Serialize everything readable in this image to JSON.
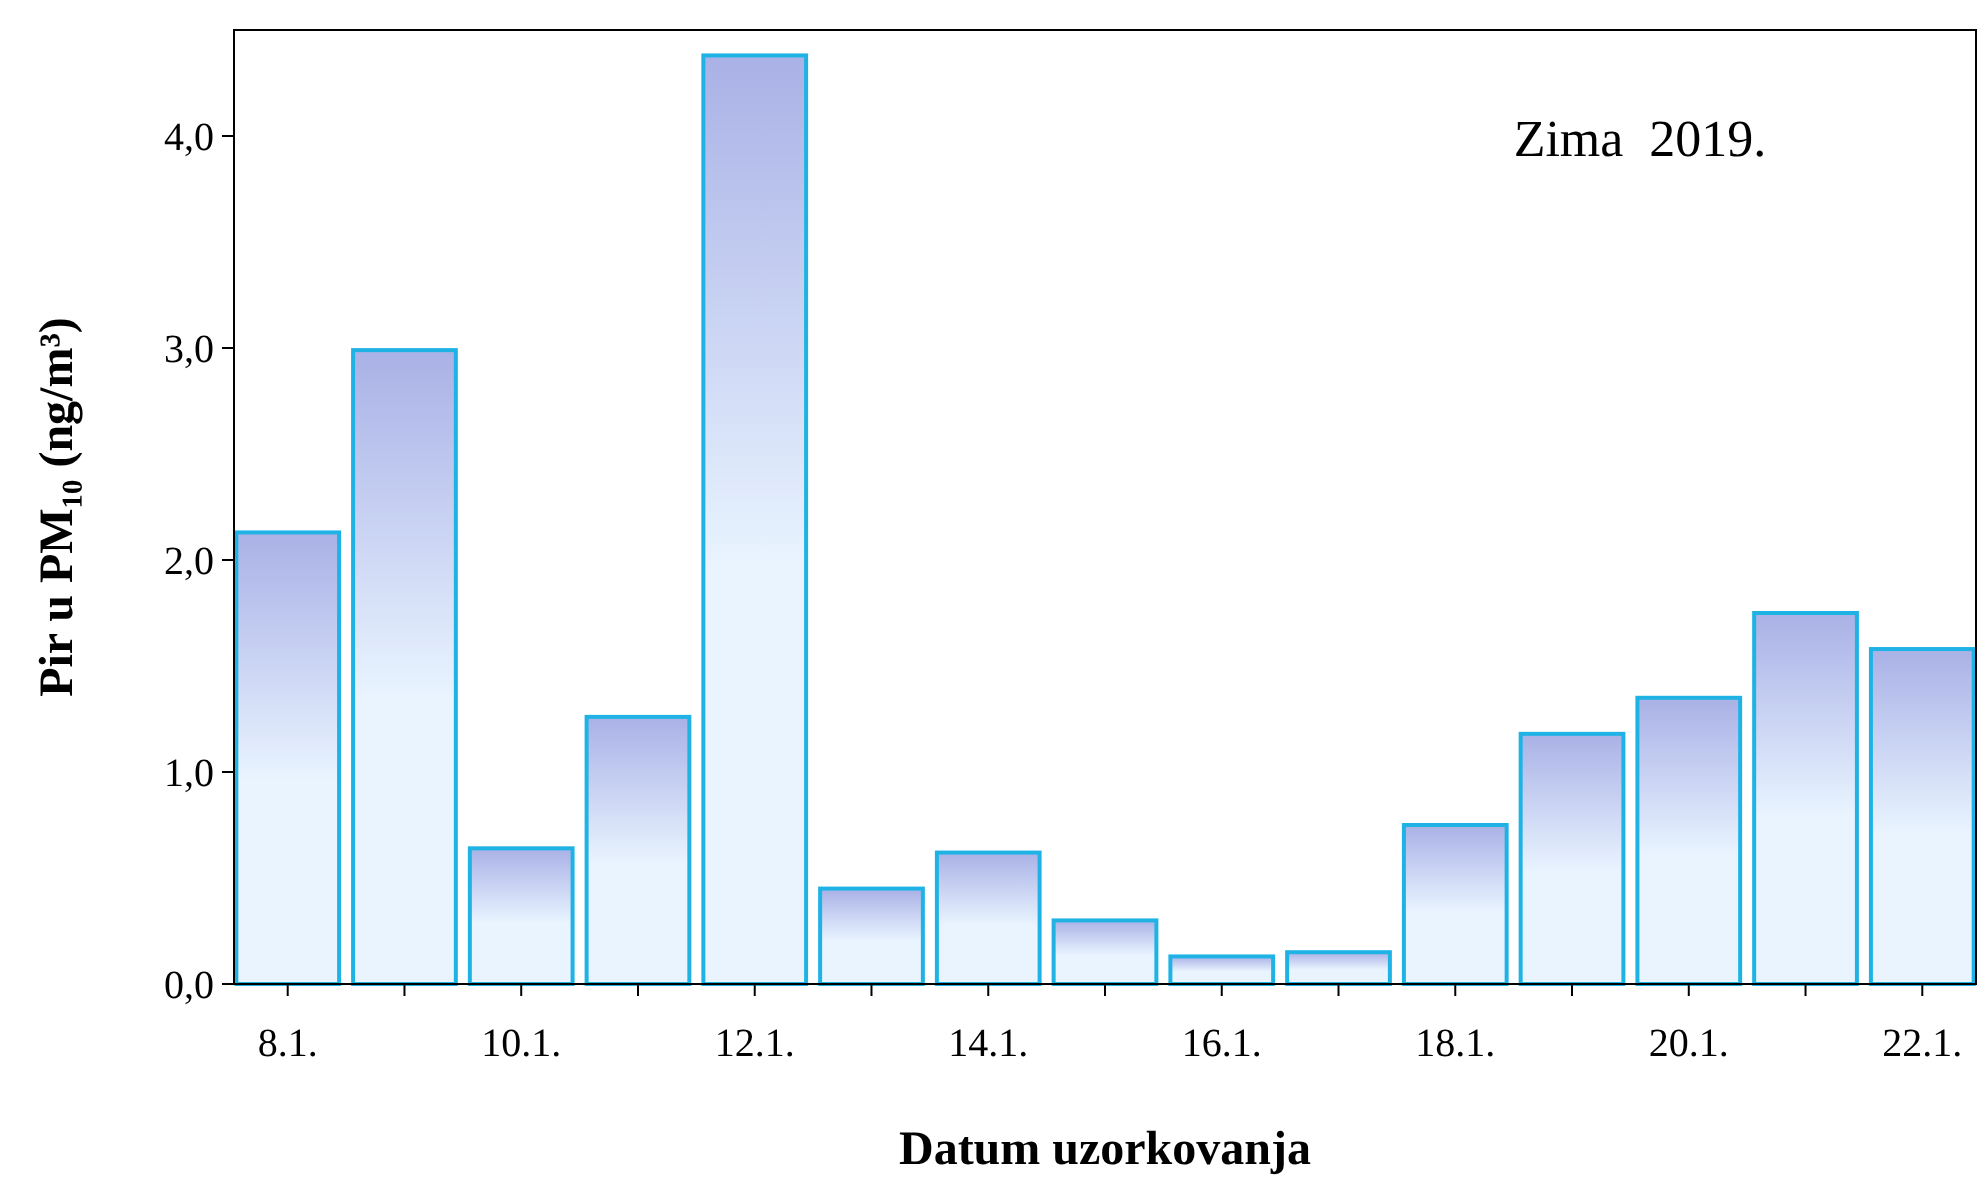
{
  "chart_data": {
    "type": "bar",
    "xlabel": "Datum uzorkovanja",
    "ylabel": "Pir u PM₁₀ (ng/m³)",
    "categories": [
      "8.1.",
      null,
      "10.1.",
      null,
      "12.1.",
      null,
      "14.1.",
      null,
      "16.1.",
      null,
      "18.1.",
      null,
      "20.1.",
      null,
      "22.1."
    ],
    "values": [
      2.13,
      2.99,
      0.64,
      1.26,
      4.38,
      0.45,
      0.62,
      0.3,
      0.13,
      0.15,
      0.75,
      1.18,
      1.35,
      1.75,
      1.58
    ],
    "color": "#1fb3e5",
    "ylim": [
      0,
      4.5
    ],
    "yticks": [
      {
        "value": 0,
        "label": "0,0"
      },
      {
        "value": 1,
        "label": "1,0"
      },
      {
        "value": 2,
        "label": "2,0"
      },
      {
        "value": 3,
        "label": "3,0"
      },
      {
        "value": 4,
        "label": "4,0"
      }
    ],
    "annotations": [
      "Zima  2019."
    ],
    "grid": false
  }
}
